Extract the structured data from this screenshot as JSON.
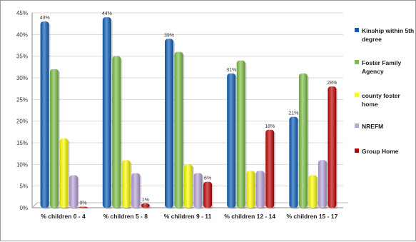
{
  "chart_data": {
    "type": "bar",
    "categories": [
      "% children 0 - 4",
      "% children 5 - 8",
      "% children 9 - 11",
      "% children 12 - 14",
      "% children 15 - 17"
    ],
    "series": [
      {
        "name": "Kinship within 5th degree",
        "color": "#0b5cb8",
        "values": [
          43,
          44,
          39,
          31,
          21
        ],
        "labels": [
          "43%",
          "44%",
          "39%",
          "31%",
          "21%"
        ]
      },
      {
        "name": "Foster Family Agency",
        "color": "#7ac143",
        "values": [
          32,
          35,
          36,
          34,
          31
        ],
        "labels": []
      },
      {
        "name": "county foster home",
        "color": "#ffff00",
        "values": [
          16,
          11,
          10,
          8.5,
          7.5
        ],
        "labels": []
      },
      {
        "name": "NREFM",
        "color": "#b9a3d8",
        "values": [
          7.5,
          8,
          8,
          8.5,
          11
        ],
        "labels": []
      },
      {
        "name": "Group Home",
        "color": "#c00000",
        "values": [
          0,
          1,
          6,
          18,
          28
        ],
        "labels": [
          "0%",
          "1%",
          "6%",
          "18%",
          "28%"
        ]
      }
    ],
    "ylim": [
      0,
      45
    ],
    "yticks": [
      "0%",
      "5%",
      "10%",
      "15%",
      "20%",
      "25%",
      "30%",
      "35%",
      "40%",
      "45%"
    ],
    "grid": true,
    "legend": "right"
  }
}
